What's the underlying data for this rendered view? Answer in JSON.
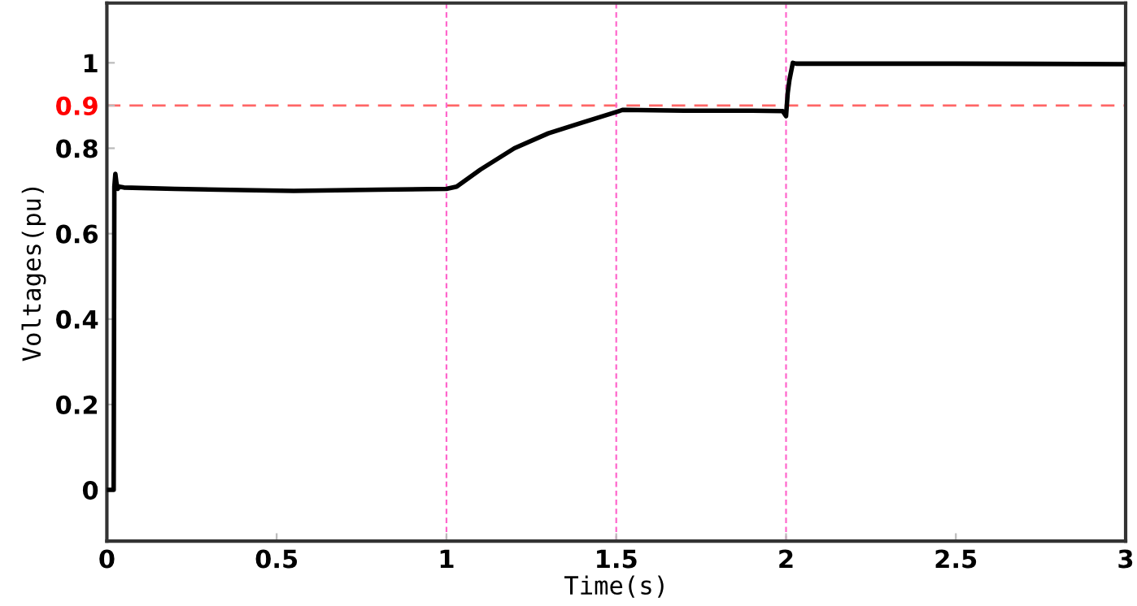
{
  "chart_data": {
    "type": "line",
    "xlabel": "Time(s)",
    "ylabel": "Voltages(pu)",
    "xlim": [
      0,
      3
    ],
    "ylim": [
      -0.12,
      1.14
    ],
    "xticks": [
      0,
      0.5,
      1,
      1.5,
      2,
      2.5,
      3
    ],
    "yticks": [
      0,
      0.2,
      0.4,
      0.6,
      0.8,
      0.9,
      1
    ],
    "grid": false,
    "legend": false,
    "line_style": "solid",
    "marker": "none",
    "series": [
      {
        "color": "#000000",
        "x": [
          0,
          0.02,
          0.022,
          0.025,
          0.028,
          0.032,
          0.036,
          0.05,
          0.2,
          0.4,
          0.55,
          0.8,
          1.0,
          1.03,
          1.1,
          1.2,
          1.3,
          1.4,
          1.5,
          1.52,
          1.7,
          1.9,
          1.99,
          2.0,
          2.005,
          2.01,
          2.02,
          2.03,
          2.5,
          3.0
        ],
        "values": [
          0,
          0,
          0.71,
          0.74,
          0.72,
          0.705,
          0.71,
          0.708,
          0.705,
          0.702,
          0.7,
          0.703,
          0.705,
          0.71,
          0.75,
          0.8,
          0.835,
          0.86,
          0.885,
          0.89,
          0.888,
          0.888,
          0.887,
          0.875,
          0.93,
          0.96,
          1.0,
          0.998,
          0.998,
          0.997
        ]
      }
    ],
    "ref_lines": [
      {
        "axis": "y",
        "value": 0.9,
        "color": "#ff6666",
        "line_style": "dashed"
      },
      {
        "axis": "x",
        "value": 1,
        "color": "#ff66cc",
        "line_style": "dashed"
      },
      {
        "axis": "x",
        "value": 1.5,
        "color": "#ff66cc",
        "line_style": "dashed"
      },
      {
        "axis": "x",
        "value": 2,
        "color": "#ff66cc",
        "line_style": "dashed"
      }
    ]
  }
}
